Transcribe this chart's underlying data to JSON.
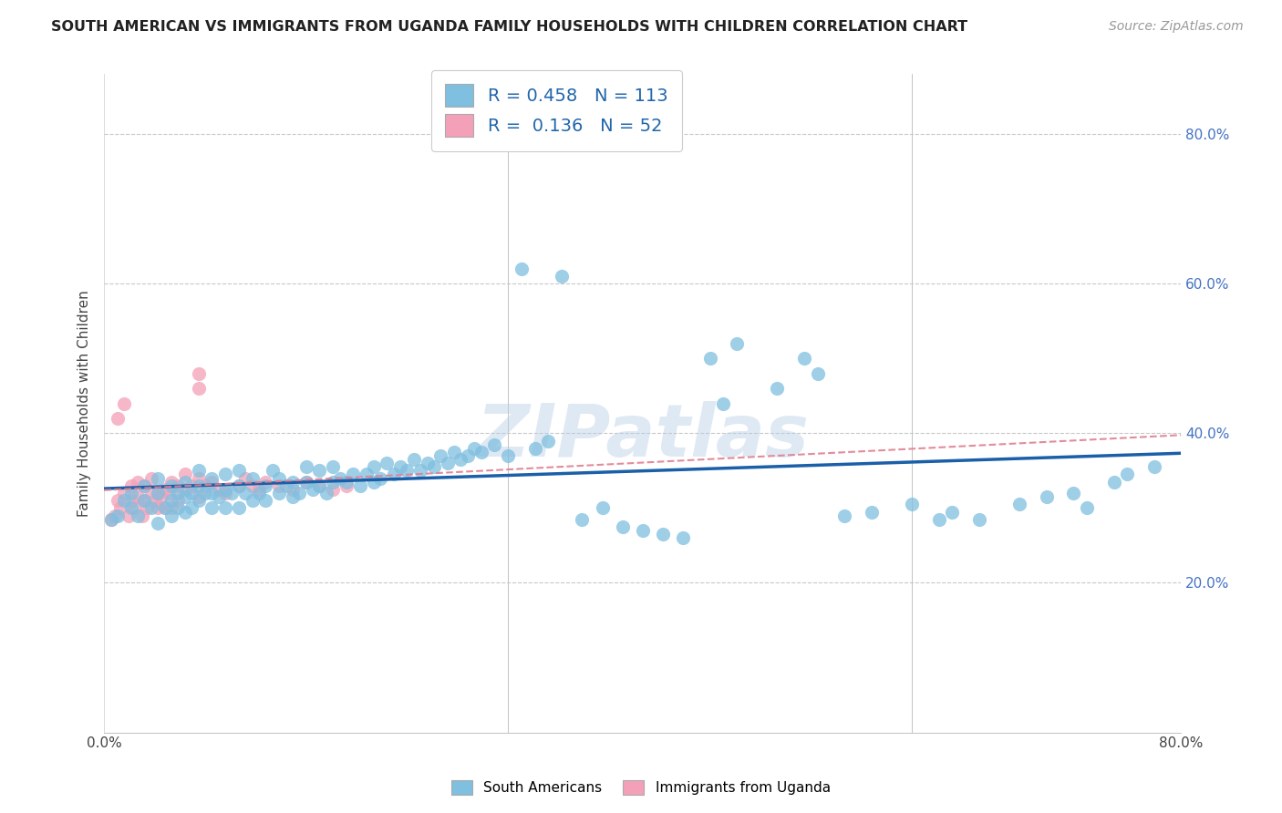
{
  "title": "SOUTH AMERICAN VS IMMIGRANTS FROM UGANDA FAMILY HOUSEHOLDS WITH CHILDREN CORRELATION CHART",
  "source": "Source: ZipAtlas.com",
  "ylabel": "Family Households with Children",
  "xlim": [
    0.0,
    0.8
  ],
  "ylim": [
    0.0,
    0.88
  ],
  "blue_R": 0.458,
  "blue_N": 113,
  "pink_R": 0.136,
  "pink_N": 52,
  "blue_color": "#7fbfdf",
  "pink_color": "#f4a0b8",
  "blue_line_color": "#1a5fa8",
  "pink_line_color": "#e08090",
  "watermark": "ZIPatlas",
  "blue_scatter_x": [
    0.005,
    0.01,
    0.015,
    0.02,
    0.02,
    0.025,
    0.03,
    0.03,
    0.035,
    0.04,
    0.04,
    0.04,
    0.045,
    0.05,
    0.05,
    0.05,
    0.055,
    0.055,
    0.06,
    0.06,
    0.06,
    0.065,
    0.065,
    0.07,
    0.07,
    0.07,
    0.075,
    0.08,
    0.08,
    0.08,
    0.085,
    0.09,
    0.09,
    0.09,
    0.095,
    0.1,
    0.1,
    0.1,
    0.105,
    0.11,
    0.11,
    0.115,
    0.12,
    0.12,
    0.125,
    0.13,
    0.13,
    0.135,
    0.14,
    0.14,
    0.145,
    0.15,
    0.15,
    0.155,
    0.16,
    0.16,
    0.165,
    0.17,
    0.17,
    0.175,
    0.18,
    0.185,
    0.19,
    0.195,
    0.2,
    0.2,
    0.205,
    0.21,
    0.215,
    0.22,
    0.225,
    0.23,
    0.235,
    0.24,
    0.245,
    0.25,
    0.255,
    0.26,
    0.265,
    0.27,
    0.275,
    0.28,
    0.29,
    0.3,
    0.31,
    0.32,
    0.33,
    0.34,
    0.355,
    0.37,
    0.385,
    0.4,
    0.415,
    0.43,
    0.45,
    0.46,
    0.47,
    0.5,
    0.52,
    0.53,
    0.55,
    0.57,
    0.6,
    0.62,
    0.63,
    0.65,
    0.68,
    0.7,
    0.72,
    0.73,
    0.75,
    0.76,
    0.78
  ],
  "blue_scatter_y": [
    0.285,
    0.29,
    0.31,
    0.3,
    0.32,
    0.29,
    0.31,
    0.33,
    0.3,
    0.28,
    0.32,
    0.34,
    0.3,
    0.29,
    0.31,
    0.33,
    0.3,
    0.32,
    0.295,
    0.315,
    0.335,
    0.3,
    0.32,
    0.31,
    0.33,
    0.35,
    0.32,
    0.3,
    0.32,
    0.34,
    0.315,
    0.3,
    0.325,
    0.345,
    0.32,
    0.3,
    0.33,
    0.35,
    0.32,
    0.31,
    0.34,
    0.32,
    0.31,
    0.33,
    0.35,
    0.32,
    0.34,
    0.33,
    0.315,
    0.335,
    0.32,
    0.335,
    0.355,
    0.325,
    0.33,
    0.35,
    0.32,
    0.335,
    0.355,
    0.34,
    0.335,
    0.345,
    0.33,
    0.345,
    0.335,
    0.355,
    0.34,
    0.36,
    0.345,
    0.355,
    0.35,
    0.365,
    0.35,
    0.36,
    0.355,
    0.37,
    0.36,
    0.375,
    0.365,
    0.37,
    0.38,
    0.375,
    0.385,
    0.37,
    0.62,
    0.38,
    0.39,
    0.61,
    0.285,
    0.3,
    0.275,
    0.27,
    0.265,
    0.26,
    0.5,
    0.44,
    0.52,
    0.46,
    0.5,
    0.48,
    0.29,
    0.295,
    0.305,
    0.285,
    0.295,
    0.285,
    0.305,
    0.315,
    0.32,
    0.3,
    0.335,
    0.345,
    0.355
  ],
  "pink_scatter_x": [
    0.005,
    0.008,
    0.01,
    0.01,
    0.012,
    0.015,
    0.015,
    0.018,
    0.02,
    0.02,
    0.022,
    0.025,
    0.025,
    0.028,
    0.03,
    0.03,
    0.032,
    0.035,
    0.035,
    0.038,
    0.04,
    0.04,
    0.042,
    0.045,
    0.045,
    0.048,
    0.05,
    0.05,
    0.055,
    0.055,
    0.06,
    0.06,
    0.065,
    0.07,
    0.07,
    0.075,
    0.08,
    0.085,
    0.09,
    0.1,
    0.105,
    0.11,
    0.115,
    0.12,
    0.13,
    0.14,
    0.15,
    0.16,
    0.17,
    0.18,
    0.07,
    0.07
  ],
  "pink_scatter_y": [
    0.285,
    0.29,
    0.31,
    0.42,
    0.3,
    0.32,
    0.44,
    0.29,
    0.31,
    0.33,
    0.3,
    0.315,
    0.335,
    0.29,
    0.31,
    0.33,
    0.3,
    0.32,
    0.34,
    0.31,
    0.3,
    0.32,
    0.315,
    0.3,
    0.325,
    0.32,
    0.3,
    0.335,
    0.31,
    0.33,
    0.325,
    0.345,
    0.33,
    0.315,
    0.34,
    0.33,
    0.335,
    0.325,
    0.32,
    0.33,
    0.34,
    0.33,
    0.325,
    0.335,
    0.33,
    0.325,
    0.335,
    0.33,
    0.325,
    0.33,
    0.46,
    0.48
  ]
}
